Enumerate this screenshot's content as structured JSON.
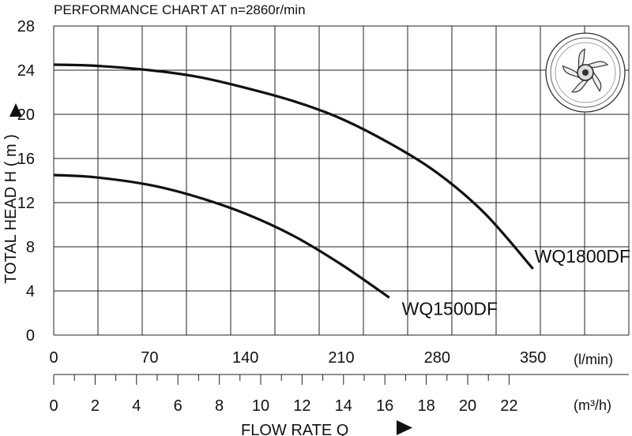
{
  "chart_data": {
    "type": "line",
    "title": "PERFORMANCE  CHART  AT  n=2860r/min",
    "ylabel": "TOTAL HEAD  H ( m )",
    "xlabel": "FLOW  RATE  Q",
    "ylim": [
      0,
      28
    ],
    "yticks": [
      "0",
      "4",
      "8",
      "12",
      "16",
      "20",
      "24",
      "28"
    ],
    "xlim_lpm": [
      0,
      420
    ],
    "xticks_lpm": [
      "0",
      "70",
      "140",
      "210",
      "280",
      "350"
    ],
    "xunit_lpm": "(l/min)",
    "xticks_m3h": [
      "0",
      "2",
      "4",
      "6",
      "8",
      "10",
      "12",
      "14",
      "16",
      "18",
      "20",
      "22"
    ],
    "xunit_m3h": "(m³/h)",
    "grid": true,
    "series": [
      {
        "name": "WQ1800DF",
        "x": [
          0,
          30,
          70,
          105,
          140,
          175,
          210,
          245,
          280,
          315,
          350
        ],
        "y": [
          24.5,
          24.4,
          24.0,
          23.4,
          22.4,
          21.2,
          19.6,
          17.4,
          14.7,
          11.0,
          6.0
        ]
      },
      {
        "name": "WQ1500DF",
        "x": [
          0,
          30,
          70,
          105,
          140,
          175,
          210,
          245
        ],
        "y": [
          14.5,
          14.3,
          13.6,
          12.5,
          11.0,
          9.0,
          6.4,
          3.4
        ]
      }
    ]
  }
}
